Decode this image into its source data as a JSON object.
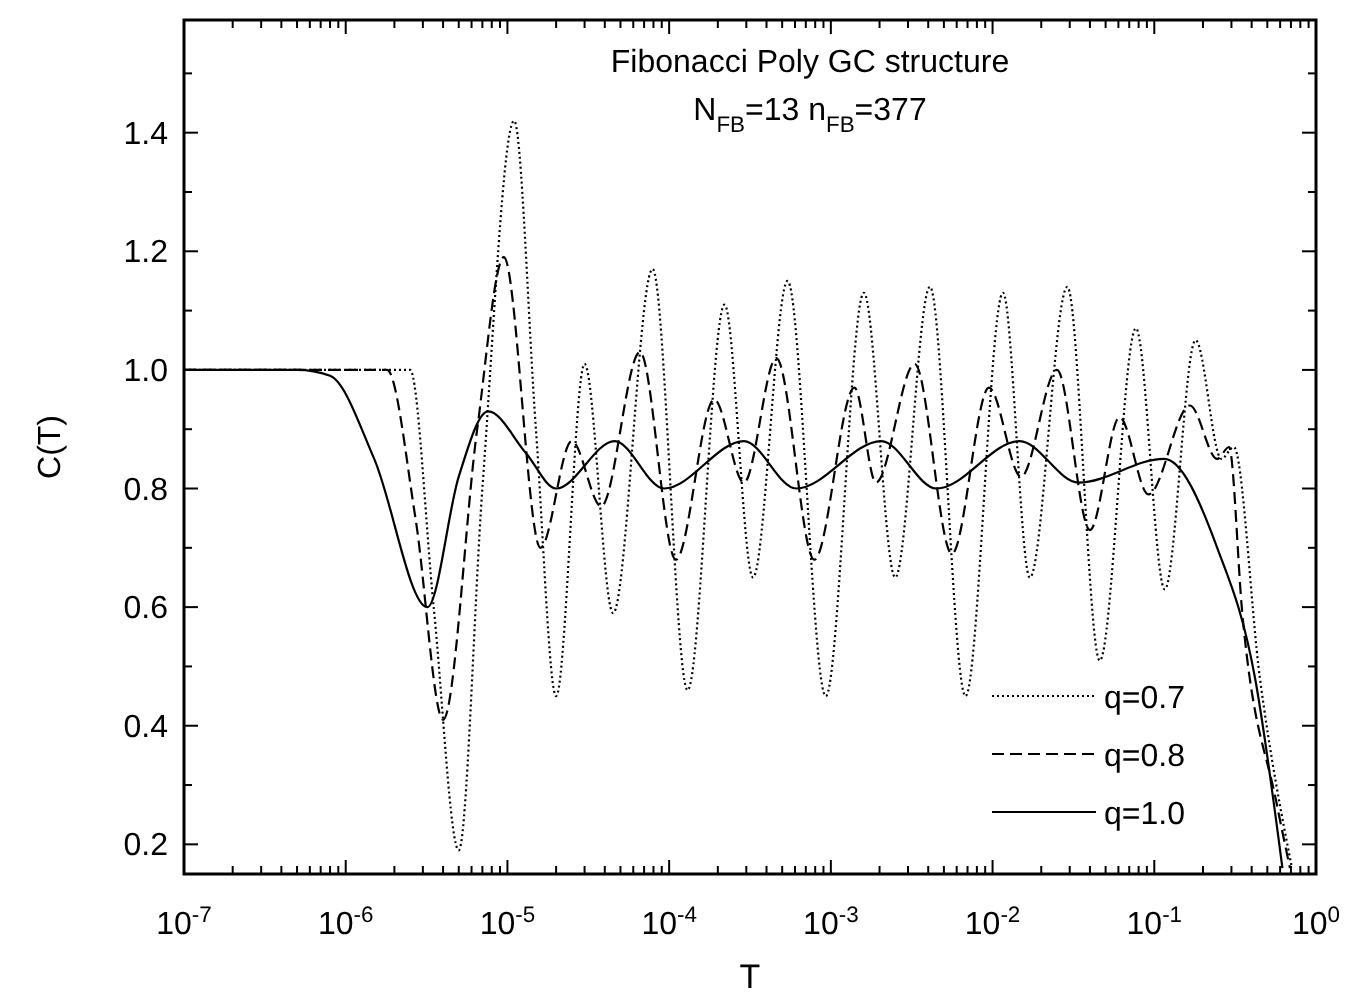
{
  "chart_data": {
    "type": "line",
    "title": "Fibonacci Poly GC structure",
    "subtitle": "N$_{FB}$=13  n$_{FB}$=377",
    "xlabel": "T",
    "ylabel": "C(T)",
    "log": "x",
    "xlim": [
      1e-07,
      1
    ],
    "ylim": [
      0.15,
      1.59
    ],
    "xticks": [
      {
        "value": 1e-07,
        "label": "10$^{-7}$"
      },
      {
        "value": 2e-07,
        "label": null
      },
      {
        "value": 3e-07,
        "label": null
      },
      {
        "value": 4e-07,
        "label": null
      },
      {
        "value": 5e-07,
        "label": null
      },
      {
        "value": 6e-07,
        "label": null
      },
      {
        "value": 7e-07,
        "label": null
      },
      {
        "value": 8e-07,
        "label": null
      },
      {
        "value": 9e-07,
        "label": null
      },
      {
        "value": 1e-06,
        "label": "10$^{-6}$"
      },
      {
        "value": 2e-06,
        "label": null
      },
      {
        "value": 3e-06,
        "label": null
      },
      {
        "value": 4e-06,
        "label": null
      },
      {
        "value": 5e-06,
        "label": null
      },
      {
        "value": 6e-06,
        "label": null
      },
      {
        "value": 7e-06,
        "label": null
      },
      {
        "value": 8e-06,
        "label": null
      },
      {
        "value": 9e-06,
        "label": null
      },
      {
        "value": 1e-05,
        "label": "10$^{-5}$"
      },
      {
        "value": 2e-05,
        "label": null
      },
      {
        "value": 3e-05,
        "label": null
      },
      {
        "value": 4e-05,
        "label": null
      },
      {
        "value": 5e-05,
        "label": null
      },
      {
        "value": 6e-05,
        "label": null
      },
      {
        "value": 7e-05,
        "label": null
      },
      {
        "value": 8e-05,
        "label": null
      },
      {
        "value": 9e-05,
        "label": null
      },
      {
        "value": 0.0001,
        "label": "10$^{-4}$"
      },
      {
        "value": 0.0002,
        "label": null
      },
      {
        "value": 0.0003,
        "label": null
      },
      {
        "value": 0.0004,
        "label": null
      },
      {
        "value": 0.0005,
        "label": null
      },
      {
        "value": 0.0006,
        "label": null
      },
      {
        "value": 0.0007,
        "label": null
      },
      {
        "value": 0.0008,
        "label": null
      },
      {
        "value": 0.0009,
        "label": null
      },
      {
        "value": 0.001,
        "label": "10$^{-3}$"
      },
      {
        "value": 0.002,
        "label": null
      },
      {
        "value": 0.003,
        "label": null
      },
      {
        "value": 0.004,
        "label": null
      },
      {
        "value": 0.005,
        "label": null
      },
      {
        "value": 0.006,
        "label": null
      },
      {
        "value": 0.007,
        "label": null
      },
      {
        "value": 0.008,
        "label": null
      },
      {
        "value": 0.009,
        "label": null
      },
      {
        "value": 0.01,
        "label": "10$^{-2}$"
      },
      {
        "value": 0.02,
        "label": null
      },
      {
        "value": 0.03,
        "label": null
      },
      {
        "value": 0.04,
        "label": null
      },
      {
        "value": 0.05,
        "label": null
      },
      {
        "value": 0.06,
        "label": null
      },
      {
        "value": 0.07,
        "label": null
      },
      {
        "value": 0.08,
        "label": null
      },
      {
        "value": 0.09,
        "label": null
      },
      {
        "value": 0.1,
        "label": "10$^{-1}$"
      },
      {
        "value": 0.2,
        "label": null
      },
      {
        "value": 0.3,
        "label": null
      },
      {
        "value": 0.4,
        "label": null
      },
      {
        "value": 0.5,
        "label": null
      },
      {
        "value": 0.6,
        "label": null
      },
      {
        "value": 0.7,
        "label": null
      },
      {
        "value": 0.8,
        "label": null
      },
      {
        "value": 0.9,
        "label": null
      },
      {
        "value": 1,
        "label": "10$^{0}$"
      }
    ],
    "yticks": [
      {
        "value": 0.2,
        "label": "0.2"
      },
      {
        "value": 0.3,
        "label": null
      },
      {
        "value": 0.4,
        "label": "0.4"
      },
      {
        "value": 0.5,
        "label": null
      },
      {
        "value": 0.6,
        "label": "0.6"
      },
      {
        "value": 0.7,
        "label": null
      },
      {
        "value": 0.8,
        "label": "0.8"
      },
      {
        "value": 0.9,
        "label": null
      },
      {
        "value": 1.0,
        "label": "1.0"
      },
      {
        "value": 1.1,
        "label": null
      },
      {
        "value": 1.2,
        "label": "1.2"
      },
      {
        "value": 1.3,
        "label": null
      },
      {
        "value": 1.4,
        "label": "1.4"
      },
      {
        "value": 1.5,
        "label": null
      }
    ],
    "grid": false,
    "legend": "bottom right",
    "series": [
      {
        "name": "q=0.7",
        "color": "#000000",
        "line_style": "dotted",
        "x": [
          1e-07,
          2e-06,
          2.5e-06,
          3.5e-06,
          5e-06,
          7e-06,
          1.1e-05,
          1.5e-05,
          2e-05,
          3e-05,
          4.5e-05,
          7.9e-05,
          0.00013,
          0.00022,
          0.00033,
          0.00054,
          0.00093,
          0.0016,
          0.0025,
          0.0041,
          0.0068,
          0.0116,
          0.017,
          0.029,
          0.046,
          0.077,
          0.116,
          0.18,
          0.26,
          0.31,
          0.45,
          0.71
        ],
        "values": [
          1.0,
          1.0,
          1.0,
          0.6,
          0.19,
          0.8,
          1.42,
          0.9,
          0.45,
          1.01,
          0.59,
          1.17,
          0.46,
          1.11,
          0.65,
          1.15,
          0.45,
          1.13,
          0.65,
          1.14,
          0.45,
          1.13,
          0.65,
          1.14,
          0.51,
          1.07,
          0.63,
          1.05,
          0.85,
          0.87,
          0.48,
          0.16
        ]
      },
      {
        "name": "q=0.8",
        "color": "#000000",
        "line_style": "dashed",
        "x": [
          1e-07,
          1.5e-06,
          1.8e-06,
          2.7e-06,
          4e-06,
          6.5e-06,
          9.5e-06,
          1.6e-05,
          2.5e-05,
          3.8e-05,
          6.6e-05,
          0.00011,
          0.00019,
          0.00029,
          0.00046,
          0.00079,
          0.0014,
          0.0019,
          0.0033,
          0.0056,
          0.0095,
          0.015,
          0.025,
          0.04,
          0.061,
          0.092,
          0.166,
          0.245,
          0.29,
          0.35,
          0.57,
          0.69
        ],
        "values": [
          1.0,
          1.0,
          1.0,
          0.75,
          0.41,
          0.9,
          1.19,
          0.7,
          0.88,
          0.77,
          1.03,
          0.68,
          0.95,
          0.81,
          1.02,
          0.68,
          0.97,
          0.81,
          1.01,
          0.69,
          0.97,
          0.82,
          1.0,
          0.73,
          0.92,
          0.79,
          0.94,
          0.85,
          0.87,
          0.59,
          0.27,
          0.16
        ]
      },
      {
        "name": "q=1.0",
        "color": "#000000",
        "line_style": "solid",
        "x": [
          1e-07,
          5e-07,
          8e-07,
          1.5e-06,
          3.2e-06,
          5e-06,
          7.6e-06,
          1.3e-05,
          2e-05,
          4.6e-05,
          9.3e-05,
          0.00029,
          0.00061,
          0.00205,
          0.0045,
          0.0147,
          0.034,
          0.115,
          0.245,
          0.42,
          0.62
        ],
        "values": [
          1.0,
          1.0,
          0.99,
          0.85,
          0.6,
          0.82,
          0.93,
          0.86,
          0.8,
          0.88,
          0.8,
          0.88,
          0.8,
          0.88,
          0.8,
          0.88,
          0.81,
          0.85,
          0.7,
          0.48,
          0.16
        ]
      }
    ]
  }
}
